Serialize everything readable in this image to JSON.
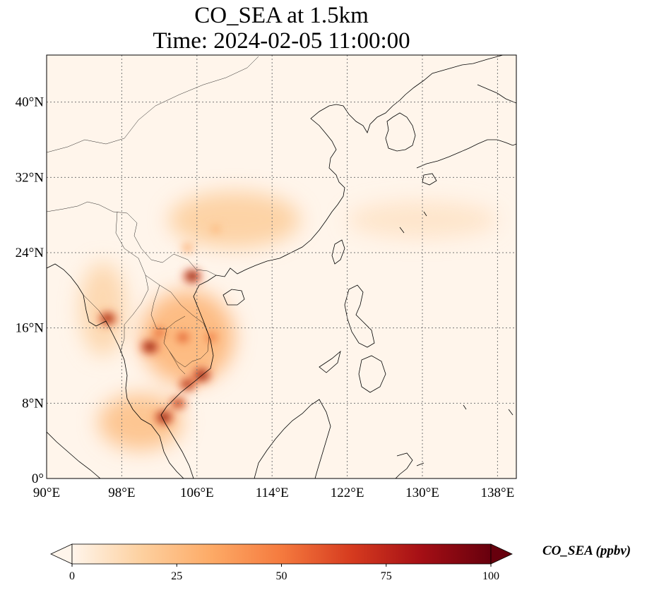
{
  "title": {
    "line1": "CO_SEA at 1.5km",
    "line2": "Time: 2024-02-05 11:00:00"
  },
  "map": {
    "lon_range": [
      90,
      140
    ],
    "lat_range": [
      0,
      45
    ],
    "lon_ticks": [
      {
        "value": 90,
        "label": "90°E"
      },
      {
        "value": 98,
        "label": "98°E"
      },
      {
        "value": 106,
        "label": "106°E"
      },
      {
        "value": 114,
        "label": "114°E"
      },
      {
        "value": 122,
        "label": "122°E"
      },
      {
        "value": 130,
        "label": "130°E"
      },
      {
        "value": 138,
        "label": "138°E"
      }
    ],
    "lat_ticks": [
      {
        "value": 0,
        "label": "0°"
      },
      {
        "value": 8,
        "label": "8°N"
      },
      {
        "value": 16,
        "label": "16°N"
      },
      {
        "value": 24,
        "label": "24°N"
      },
      {
        "value": 32,
        "label": "32°N"
      },
      {
        "value": 40,
        "label": "40°N"
      }
    ],
    "gridlines": "dotted",
    "background_color": "#fff5eb",
    "coastline_color": "#000000"
  },
  "colorbar": {
    "label": "CO_SEA (ppbv)",
    "colormap": "OrRd",
    "min": 0,
    "max": 100,
    "extend": "both",
    "ticks": [
      {
        "value": 0,
        "label": "0"
      },
      {
        "value": 25,
        "label": "25"
      },
      {
        "value": 50,
        "label": "50"
      },
      {
        "value": 75,
        "label": "75"
      },
      {
        "value": 100,
        "label": "100"
      }
    ],
    "colors": [
      "#fff5eb",
      "#fdd09f",
      "#fdaa66",
      "#f57a3e",
      "#d63b1f",
      "#a50f15",
      "#67000d"
    ]
  },
  "hotspots": [
    {
      "lon": 105.5,
      "lat": 21.5,
      "value": 100
    },
    {
      "lon": 96.5,
      "lat": 17.0,
      "value": 95
    },
    {
      "lon": 101.0,
      "lat": 14.0,
      "value": 100
    },
    {
      "lon": 106.5,
      "lat": 11.0,
      "value": 100
    },
    {
      "lon": 105.0,
      "lat": 10.0,
      "value": 90
    },
    {
      "lon": 102.5,
      "lat": 6.5,
      "value": 100
    },
    {
      "lon": 104.0,
      "lat": 8.0,
      "value": 85
    },
    {
      "lon": 104.5,
      "lat": 15.0,
      "value": 70
    },
    {
      "lon": 102.0,
      "lat": 15.5,
      "value": 65
    },
    {
      "lon": 107.5,
      "lat": 15.0,
      "value": 60
    },
    {
      "lon": 108.0,
      "lat": 26.5,
      "value": 35
    },
    {
      "lon": 105.0,
      "lat": 24.5,
      "value": 40
    }
  ],
  "plumes": [
    {
      "lon": 110.0,
      "lat": 27.5,
      "rx_deg": 7.0,
      "ry_deg": 3.0,
      "value": 18
    },
    {
      "lon": 105.0,
      "lat": 15.0,
      "rx_deg": 5.0,
      "ry_deg": 5.0,
      "value": 30
    },
    {
      "lon": 100.0,
      "lat": 6.0,
      "rx_deg": 4.5,
      "ry_deg": 3.0,
      "value": 25
    },
    {
      "lon": 96.0,
      "lat": 18.0,
      "rx_deg": 2.5,
      "ry_deg": 5.0,
      "value": 15
    },
    {
      "lon": 130.0,
      "lat": 27.5,
      "rx_deg": 8.0,
      "ry_deg": 2.0,
      "value": 8
    }
  ]
}
